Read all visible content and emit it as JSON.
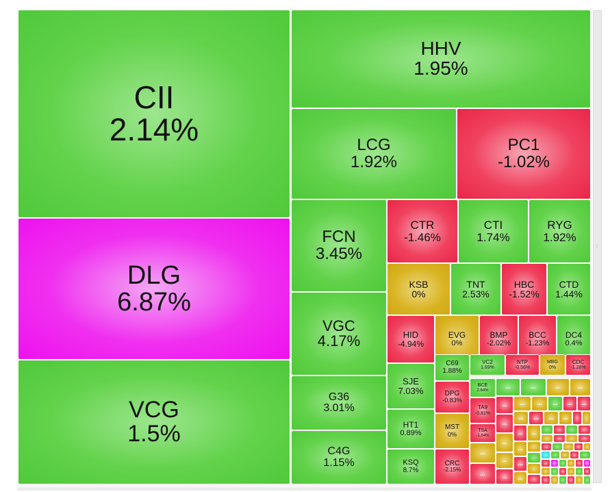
{
  "chart_data": {
    "type": "treemap",
    "title": "",
    "colors": {
      "up": "#52cc3c",
      "down": "#ee2a4b",
      "flat": "#d6b01d",
      "ceiling": "#ee14ee",
      "floor": "#19d9d9"
    },
    "tiles": [
      {
        "name": "CII",
        "pct": "2.14%",
        "change": 2.14,
        "status": "up"
      },
      {
        "name": "DLG",
        "pct": "6.87%",
        "change": 6.87,
        "status": "ceiling"
      },
      {
        "name": "VCG",
        "pct": "1.5%",
        "change": 1.5,
        "status": "up"
      },
      {
        "name": "HHV",
        "pct": "1.95%",
        "change": 1.95,
        "status": "up"
      },
      {
        "name": "LCG",
        "pct": "1.92%",
        "change": 1.92,
        "status": "up"
      },
      {
        "name": "PC1",
        "pct": "-1.02%",
        "change": -1.02,
        "status": "down"
      },
      {
        "name": "FCN",
        "pct": "3.45%",
        "change": 3.45,
        "status": "up"
      },
      {
        "name": "VGC",
        "pct": "4.17%",
        "change": 4.17,
        "status": "up"
      },
      {
        "name": "G36",
        "pct": "3.01%",
        "change": 3.01,
        "status": "up"
      },
      {
        "name": "C4G",
        "pct": "1.15%",
        "change": 1.15,
        "status": "up"
      },
      {
        "name": "CTR",
        "pct": "-1.46%",
        "change": -1.46,
        "status": "down"
      },
      {
        "name": "CTI",
        "pct": "1.74%",
        "change": 1.74,
        "status": "up"
      },
      {
        "name": "RYG",
        "pct": "1.92%",
        "change": 1.92,
        "status": "up"
      },
      {
        "name": "KSB",
        "pct": "0%",
        "change": 0,
        "status": "flat"
      },
      {
        "name": "TNT",
        "pct": "2.53%",
        "change": 2.53,
        "status": "up"
      },
      {
        "name": "HBC",
        "pct": "-1.52%",
        "change": -1.52,
        "status": "down"
      },
      {
        "name": "CTD",
        "pct": "1.44%",
        "change": 1.44,
        "status": "up"
      },
      {
        "name": "HID",
        "pct": "-4.94%",
        "change": -4.94,
        "status": "down"
      },
      {
        "name": "EVG",
        "pct": "0%",
        "change": 0,
        "status": "flat"
      },
      {
        "name": "BMP",
        "pct": "-2.02%",
        "change": -2.02,
        "status": "down"
      },
      {
        "name": "BCC",
        "pct": "-1.23%",
        "change": -1.23,
        "status": "down"
      },
      {
        "name": "DC4",
        "pct": "0.4%",
        "change": 0.4,
        "status": "up"
      },
      {
        "name": "SJE",
        "pct": "7.03%",
        "change": 7.03,
        "status": "up"
      },
      {
        "name": "HT1",
        "pct": "0.89%",
        "change": 0.89,
        "status": "up"
      },
      {
        "name": "KSQ",
        "pct": "8.7%",
        "change": 8.7,
        "status": "up"
      },
      {
        "name": "C69",
        "pct": "1.88%",
        "change": 1.88,
        "status": "up"
      },
      {
        "name": "VC2",
        "pct": "1.69%",
        "change": 1.69,
        "status": "up"
      },
      {
        "name": "NTP",
        "pct": "-0.56%",
        "change": -0.56,
        "status": "down"
      },
      {
        "name": "MBG",
        "pct": "0%",
        "change": 0,
        "status": "flat"
      },
      {
        "name": "CDC",
        "pct": "-1.26%",
        "change": -1.26,
        "status": "down"
      },
      {
        "name": "DPG",
        "pct": "-0.83%",
        "change": -0.83,
        "status": "down"
      },
      {
        "name": "MST",
        "pct": "0%",
        "change": 0,
        "status": "flat"
      },
      {
        "name": "CRC",
        "pct": "-2.15%",
        "change": -2.15,
        "status": "down"
      },
      {
        "name": "BCE",
        "pct": "2.64%",
        "change": 2.64,
        "status": "up"
      },
      {
        "name": "TA9",
        "pct": "-0.81%",
        "change": -0.81,
        "status": "down"
      },
      {
        "name": "TSA",
        "pct": "-1.64%",
        "change": -1.64,
        "status": "down"
      }
    ],
    "more_label": "..."
  }
}
